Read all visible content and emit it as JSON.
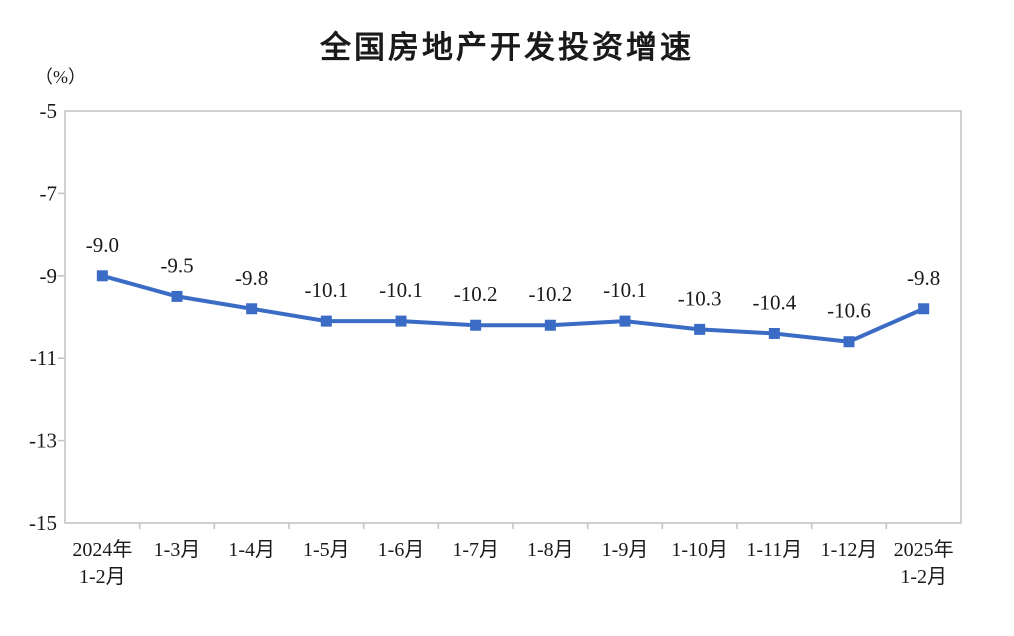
{
  "page": {
    "background": "#ffffff"
  },
  "chart_data": {
    "type": "line",
    "title": "全国房地产开发投资增速",
    "unit_label": "（%）",
    "categories": [
      "2024年\n1-2月",
      "1-3月",
      "1-4月",
      "1-5月",
      "1-6月",
      "1-7月",
      "1-8月",
      "1-9月",
      "1-10月",
      "1-11月",
      "1-12月",
      "2025年\n1-2月"
    ],
    "values": [
      -9.0,
      -9.5,
      -9.8,
      -10.1,
      -10.1,
      -10.2,
      -10.2,
      -10.1,
      -10.3,
      -10.4,
      -10.6,
      -9.8
    ],
    "data_labels": [
      "-9.0",
      "-9.5",
      "-9.8",
      "-10.1",
      "-10.1",
      "-10.2",
      "-10.2",
      "-10.1",
      "-10.3",
      "-10.4",
      "-10.6",
      "-9.8"
    ],
    "y_ticks": [
      -5,
      -7,
      -9,
      -11,
      -13,
      -15
    ],
    "ylim": [
      -15,
      -5
    ],
    "xlabel": "",
    "ylabel": "（%）",
    "grid": false,
    "legend_position": "none",
    "line_color": "#3B6CC5",
    "marker": "square",
    "axis_color": "#C4C4C4",
    "text_color": "#1A1A1A"
  }
}
